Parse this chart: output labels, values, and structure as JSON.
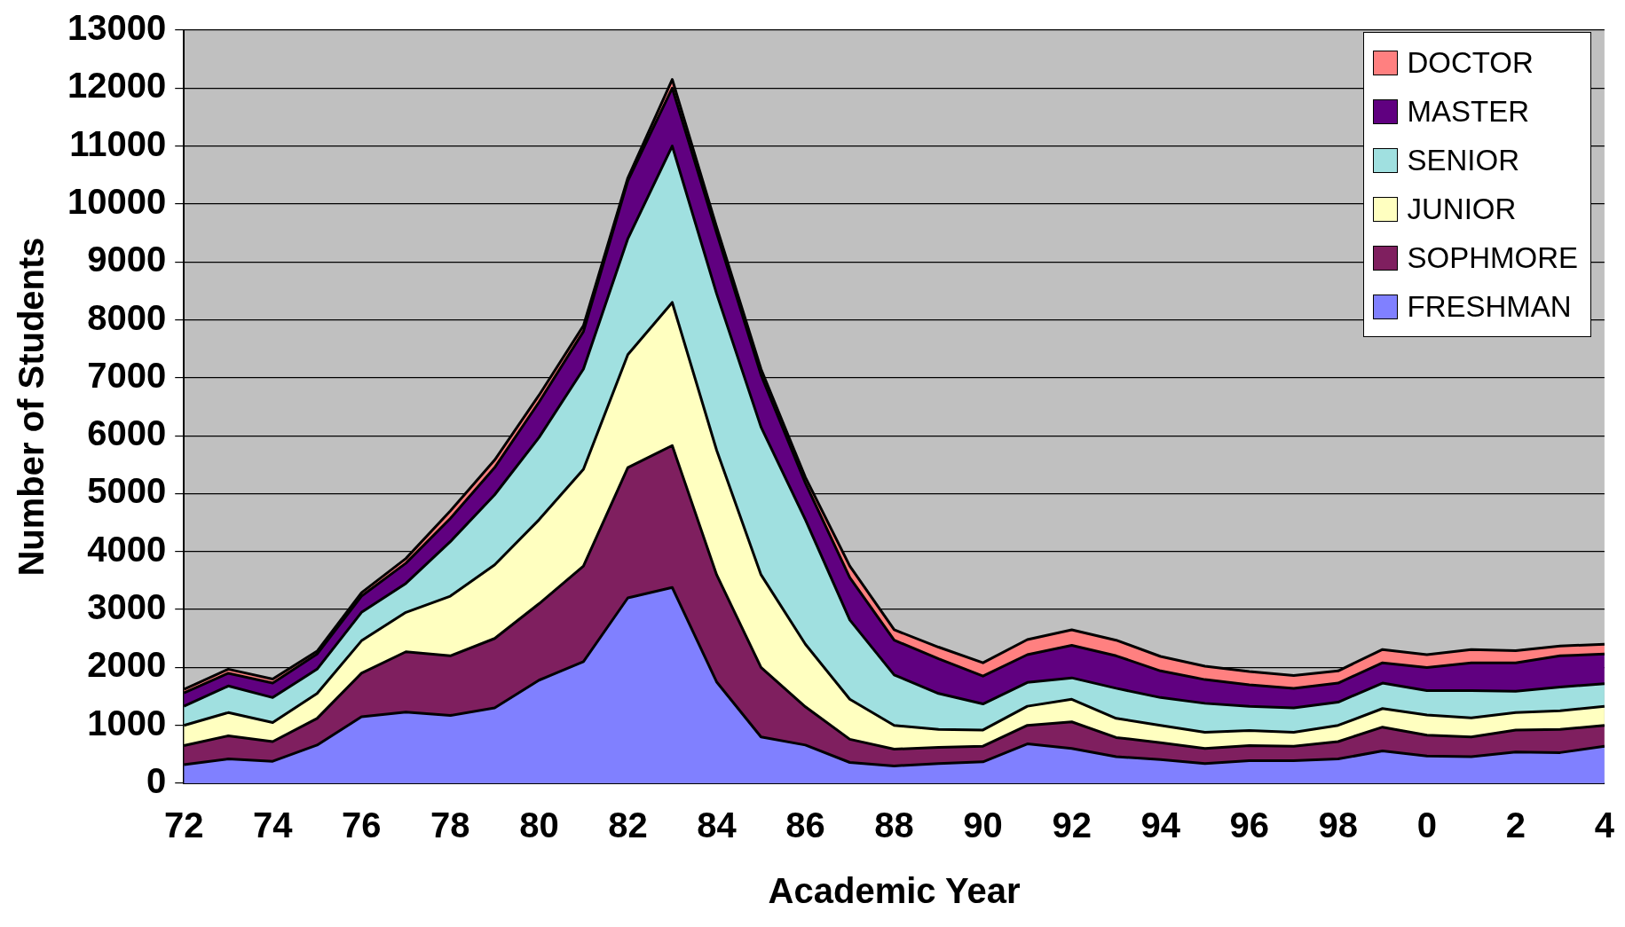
{
  "chart_data": {
    "type": "area",
    "stacked": true,
    "xlabel": "Academic Year",
    "ylabel": "Number of Students",
    "categories": [
      "72",
      null,
      "74",
      null,
      "76",
      null,
      "78",
      null,
      "80",
      null,
      "82",
      null,
      "84",
      null,
      "86",
      null,
      "88",
      null,
      "90",
      null,
      "92",
      null,
      "94",
      null,
      "96",
      null,
      "98",
      null,
      "0",
      null,
      "2",
      null,
      "4"
    ],
    "series": [
      {
        "name": "FRESHMAN",
        "color": "#8080ff",
        "values": [
          320,
          420,
          380,
          660,
          1150,
          1230,
          1170,
          1300,
          1780,
          2100,
          3200,
          3380,
          1750,
          800,
          660,
          360,
          300,
          340,
          370,
          680,
          600,
          460,
          410,
          340,
          390,
          390,
          420,
          560,
          470,
          460,
          540,
          530,
          640
        ]
      },
      {
        "name": "SOPHMORE",
        "color": "#7f1f5f",
        "values": [
          330,
          400,
          340,
          460,
          750,
          1040,
          1030,
          1200,
          1320,
          1650,
          2250,
          2450,
          1850,
          1200,
          660,
          400,
          290,
          280,
          270,
          320,
          460,
          330,
          290,
          260,
          260,
          250,
          300,
          410,
          360,
          340,
          380,
          400,
          360
        ]
      },
      {
        "name": "JUNIOR",
        "color": "#ffffc0",
        "values": [
          350,
          400,
          330,
          430,
          560,
          680,
          1030,
          1270,
          1450,
          1670,
          1950,
          2470,
          2150,
          1600,
          1080,
          690,
          410,
          310,
          280,
          330,
          390,
          330,
          300,
          280,
          260,
          240,
          280,
          320,
          350,
          330,
          300,
          320,
          330
        ]
      },
      {
        "name": "SENIOR",
        "color": "#a0e0e0",
        "values": [
          330,
          460,
          430,
          420,
          490,
          500,
          940,
          1210,
          1420,
          1730,
          2000,
          2700,
          2700,
          2550,
          2150,
          1370,
          870,
          620,
          450,
          410,
          370,
          520,
          480,
          500,
          420,
          420,
          400,
          440,
          420,
          470,
          370,
          410,
          390
        ]
      },
      {
        "name": "MASTER",
        "color": "#600080",
        "values": [
          230,
          220,
          250,
          260,
          280,
          350,
          400,
          470,
          610,
          650,
          1000,
          1000,
          1050,
          900,
          630,
          730,
          600,
          600,
          480,
          480,
          560,
          560,
          460,
          410,
          370,
          340,
          330,
          350,
          400,
          480,
          490,
          540,
          510
        ]
      },
      {
        "name": "DOCTOR",
        "color": "#ff8080",
        "values": [
          60,
          70,
          70,
          50,
          60,
          80,
          130,
          130,
          120,
          100,
          50,
          150,
          100,
          100,
          100,
          200,
          180,
          200,
          230,
          260,
          270,
          270,
          250,
          230,
          230,
          220,
          210,
          230,
          220,
          230,
          210,
          170,
          170
        ]
      }
    ],
    "ylim": [
      0,
      13000
    ],
    "yticks": [
      0,
      1000,
      2000,
      3000,
      4000,
      5000,
      6000,
      7000,
      8000,
      9000,
      10000,
      11000,
      12000,
      13000
    ],
    "grid": "y",
    "legend": "top right"
  }
}
